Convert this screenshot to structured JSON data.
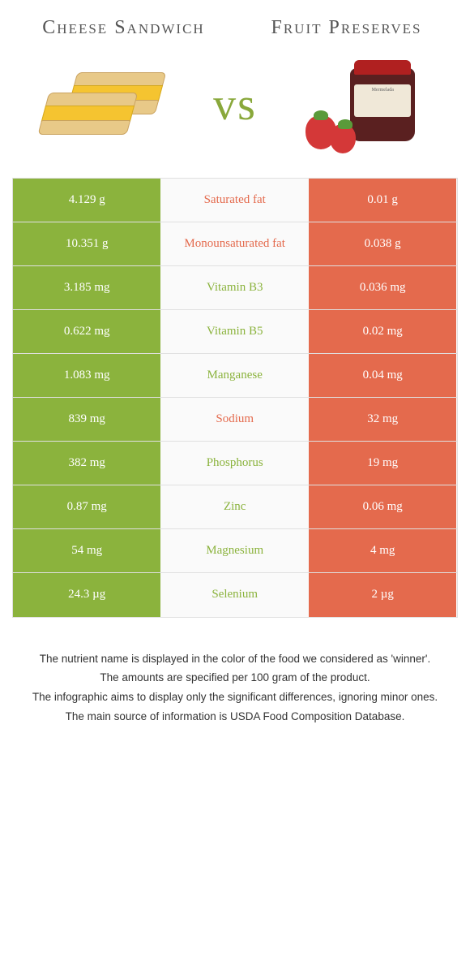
{
  "header": {
    "left_title": "Cheese Sandwich",
    "right_title": "Fruit Preserves",
    "vs": "vs"
  },
  "colors": {
    "green": "#8bb33d",
    "orange": "#e46a4d",
    "white": "#ffffff",
    "mid_bg": "#fafafa"
  },
  "fonts": {
    "title_family": "Georgia, serif",
    "title_size_pt": 18,
    "body_size_pt": 11,
    "footer_size_pt": 10
  },
  "table": {
    "columns": [
      "left_value",
      "label",
      "right_value"
    ],
    "rows": [
      {
        "left": "4.129 g",
        "label": "Saturated fat",
        "right": "0.01 g",
        "winner": "left",
        "label_color": "#e46a4d"
      },
      {
        "left": "10.351 g",
        "label": "Monounsaturated fat",
        "right": "0.038 g",
        "winner": "left",
        "label_color": "#e46a4d"
      },
      {
        "left": "3.185 mg",
        "label": "Vitamin B3",
        "right": "0.036 mg",
        "winner": "left",
        "label_color": "#8bb33d"
      },
      {
        "left": "0.622 mg",
        "label": "Vitamin B5",
        "right": "0.02 mg",
        "winner": "left",
        "label_color": "#8bb33d"
      },
      {
        "left": "1.083 mg",
        "label": "Manganese",
        "right": "0.04 mg",
        "winner": "left",
        "label_color": "#8bb33d"
      },
      {
        "left": "839 mg",
        "label": "Sodium",
        "right": "32 mg",
        "winner": "left",
        "label_color": "#e46a4d"
      },
      {
        "left": "382 mg",
        "label": "Phosphorus",
        "right": "19 mg",
        "winner": "left",
        "label_color": "#8bb33d"
      },
      {
        "left": "0.87 mg",
        "label": "Zinc",
        "right": "0.06 mg",
        "winner": "left",
        "label_color": "#8bb33d"
      },
      {
        "left": "54 mg",
        "label": "Magnesium",
        "right": "4 mg",
        "winner": "left",
        "label_color": "#8bb33d"
      },
      {
        "left": "24.3 µg",
        "label": "Selenium",
        "right": "2 µg",
        "winner": "left",
        "label_color": "#8bb33d"
      }
    ]
  },
  "footer": {
    "lines": [
      "The nutrient name is displayed in the color of the food we considered as 'winner'.",
      "The amounts are specified per 100 gram of the product.",
      "The infographic aims to display only the significant differences, ignoring minor ones.",
      "The main source of information is USDA Food Composition Database."
    ]
  }
}
